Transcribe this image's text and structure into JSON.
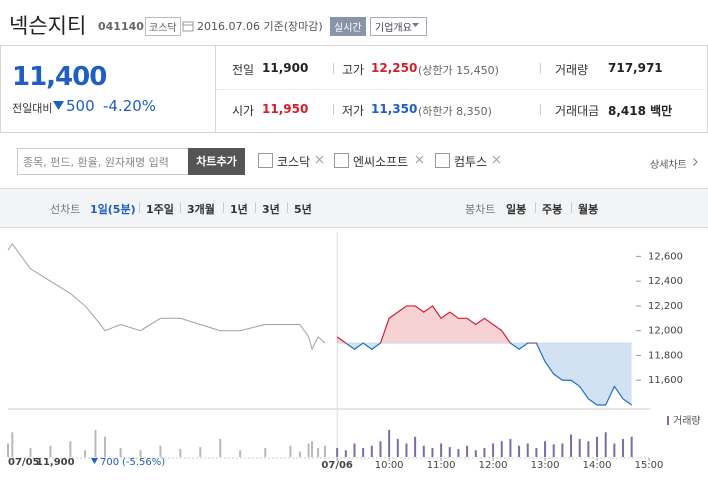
{
  "header": {
    "name": "넥슨지티",
    "code": "041140",
    "market": "코스닥",
    "date": "2016.07.06 기준(장마감)",
    "realtime_button": "실시간",
    "company_button": "기업개요"
  },
  "summary": {
    "price": "11,400",
    "change_label": "전일대비",
    "change": "500",
    "change_pct": "-4.20%",
    "stats": [
      {
        "label": "전일",
        "value": "11,900"
      },
      {
        "label": "고가",
        "value": "12,250",
        "note": "(상한가 15,450)"
      },
      {
        "label": "거래량",
        "value": "717,971"
      },
      {
        "label": "시가",
        "value": "11,950"
      },
      {
        "label": "저가",
        "value": "11,350",
        "note": "(하한가 8,350)"
      },
      {
        "label": "거래대금",
        "value": "8,418 백만"
      }
    ]
  },
  "search": {
    "placeholder": "종목, 펀드, 환율, 원자재명 입력",
    "button": "차트추가",
    "compare": [
      "코스닥",
      "엔씨소프트",
      "컴투스"
    ],
    "detail_link": "상세차트"
  },
  "tabs": {
    "line_label": "선차트",
    "line": [
      "1일(5분)",
      "1주일",
      "3개월",
      "1년",
      "3년",
      "5년"
    ],
    "candle_label": "봉차트",
    "candle": [
      "일봉",
      "주봉",
      "월봉"
    ]
  },
  "chart_data": {
    "type": "line",
    "xlim": [
      -380,
      360
    ],
    "xticks": [
      {
        "value": 0,
        "label": "07/06"
      },
      {
        "value": 60,
        "label": "10:00"
      },
      {
        "value": 120,
        "label": "11:00"
      },
      {
        "value": 180,
        "label": "12:00"
      },
      {
        "value": 240,
        "label": "13:00"
      },
      {
        "value": 300,
        "label": "14:00"
      },
      {
        "value": 360,
        "label": "15:00"
      }
    ],
    "ylim": [
      11400,
      12700
    ],
    "yticks": [
      {
        "value": 11600,
        "label": "11,600"
      },
      {
        "value": 11800,
        "label": "11,800"
      },
      {
        "value": 12000,
        "label": "12,000"
      },
      {
        "value": 12200,
        "label": "12,200"
      },
      {
        "value": 12400,
        "label": "12,400"
      },
      {
        "value": 12600,
        "label": "12,600"
      }
    ],
    "reference_price": 11900,
    "prev_day": {
      "color": "#a0a0a0",
      "x": [
        -380,
        -375,
        -354,
        -331,
        -308,
        -291,
        -279,
        -268,
        -250,
        -227,
        -204,
        -181,
        -158,
        -135,
        -112,
        -83,
        -54,
        -43,
        -33,
        -29,
        -22,
        -14
      ],
      "values": [
        12650,
        12700,
        12500,
        12400,
        12300,
        12200,
        12100,
        12000,
        12050,
        12000,
        12100,
        12100,
        12050,
        12000,
        12000,
        12050,
        12050,
        12050,
        11950,
        11850,
        11950,
        11900
      ],
      "volume": [
        30,
        55,
        20,
        25,
        35,
        15,
        60,
        45,
        20,
        15,
        25,
        18,
        22,
        40,
        15,
        20,
        25,
        12,
        30,
        35,
        20,
        25
      ]
    },
    "today": {
      "up_color": "#d0202e",
      "down_color": "#1f6fc5",
      "volume_color": "#7a6ca8",
      "x": [
        0,
        10,
        20,
        30,
        40,
        50,
        60,
        70,
        80,
        90,
        100,
        110,
        120,
        130,
        140,
        150,
        160,
        170,
        180,
        190,
        200,
        210,
        220,
        230,
        240,
        250,
        260,
        270,
        280,
        290,
        300,
        310,
        320,
        330,
        340
      ],
      "values": [
        11950,
        11900,
        11850,
        11900,
        11850,
        11900,
        12100,
        12150,
        12200,
        12200,
        12150,
        12200,
        12100,
        12150,
        12100,
        12100,
        12050,
        12100,
        12050,
        12000,
        11900,
        11850,
        11900,
        11900,
        11750,
        11650,
        11600,
        11600,
        11550,
        11450,
        11400,
        11400,
        11550,
        11450,
        11400
      ],
      "volume": [
        20,
        15,
        30,
        20,
        25,
        35,
        60,
        40,
        30,
        45,
        25,
        20,
        30,
        22,
        18,
        25,
        15,
        20,
        30,
        35,
        40,
        25,
        30,
        20,
        35,
        28,
        30,
        50,
        40,
        35,
        45,
        55,
        30,
        40,
        45
      ]
    },
    "vlim": [
      0,
      100
    ],
    "volume_label": "거래량",
    "footer": {
      "date": "07/05",
      "close": "11,900",
      "change": "700",
      "change_pct": "(-5.56%)"
    }
  }
}
